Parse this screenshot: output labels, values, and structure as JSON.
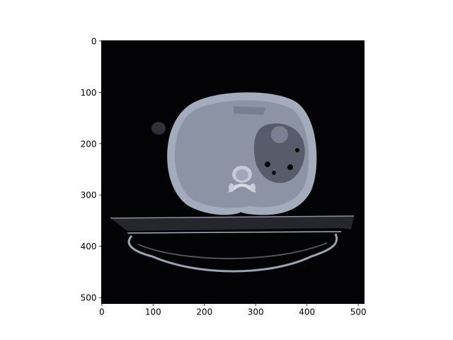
{
  "chart_data": {
    "type": "image",
    "xlim": [
      -0.5,
      511.5
    ],
    "ylim": [
      511.5,
      -0.5
    ],
    "xticks": [
      0,
      100,
      200,
      300,
      400,
      500
    ],
    "yticks": [
      0,
      100,
      200,
      300,
      400,
      500
    ]
  }
}
